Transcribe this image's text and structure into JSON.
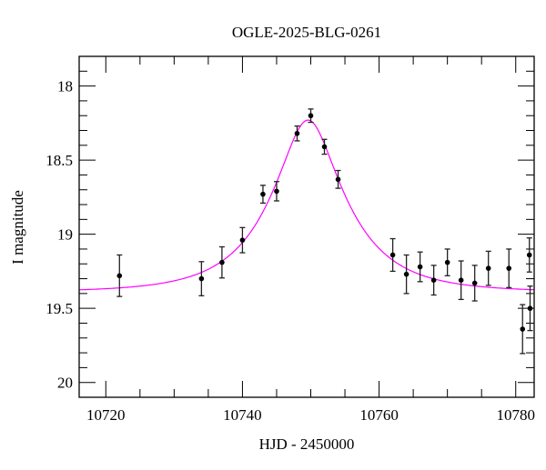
{
  "chart_data": {
    "type": "scatter",
    "title": "OGLE-2025-BLG-0261",
    "xlabel": "HJD - 2450000",
    "ylabel": "I magnitude",
    "xlim": [
      10716.1,
      10782.7
    ],
    "ylim": [
      20.1,
      17.8
    ],
    "y_inverted": true,
    "grid": false,
    "x_major_ticks": [
      10720,
      10740,
      10760,
      10780
    ],
    "x_tick_labels": [
      "10720",
      "10740",
      "10760",
      "10780"
    ],
    "x_minor_step": 5,
    "y_major_ticks": [
      18,
      18.5,
      19,
      19.5,
      20
    ],
    "y_tick_labels": [
      "18",
      "18.5",
      "19",
      "19.5",
      "20"
    ],
    "y_minor_step": 0.1,
    "points_color": "#000000",
    "points": [
      {
        "x": 10722,
        "y": 19.28,
        "err": 0.14
      },
      {
        "x": 10734,
        "y": 19.3,
        "err": 0.115
      },
      {
        "x": 10737,
        "y": 19.19,
        "err": 0.105
      },
      {
        "x": 10740,
        "y": 19.04,
        "err": 0.085
      },
      {
        "x": 10743,
        "y": 18.73,
        "err": 0.06
      },
      {
        "x": 10745,
        "y": 18.71,
        "err": 0.065
      },
      {
        "x": 10748,
        "y": 18.32,
        "err": 0.05
      },
      {
        "x": 10750,
        "y": 18.2,
        "err": 0.045
      },
      {
        "x": 10752,
        "y": 18.41,
        "err": 0.05
      },
      {
        "x": 10754,
        "y": 18.63,
        "err": 0.06
      },
      {
        "x": 10762,
        "y": 19.14,
        "err": 0.11
      },
      {
        "x": 10764,
        "y": 19.27,
        "err": 0.13
      },
      {
        "x": 10766,
        "y": 19.22,
        "err": 0.1
      },
      {
        "x": 10768,
        "y": 19.31,
        "err": 0.1
      },
      {
        "x": 10770,
        "y": 19.19,
        "err": 0.09
      },
      {
        "x": 10772,
        "y": 19.31,
        "err": 0.13
      },
      {
        "x": 10774,
        "y": 19.33,
        "err": 0.12
      },
      {
        "x": 10776,
        "y": 19.23,
        "err": 0.115
      },
      {
        "x": 10779,
        "y": 19.23,
        "err": 0.13
      },
      {
        "x": 10781,
        "y": 19.64,
        "err": 0.165
      },
      {
        "x": 10782,
        "y": 19.14,
        "err": 0.115
      },
      {
        "x": 10782.1,
        "y": 19.5,
        "err": 0.15
      }
    ],
    "model": {
      "type": "point-lens",
      "color": "#ff00ff",
      "t0": 10749.6,
      "u0": 0.36,
      "tE": 10.6,
      "baseline_mag": 19.39
    }
  }
}
